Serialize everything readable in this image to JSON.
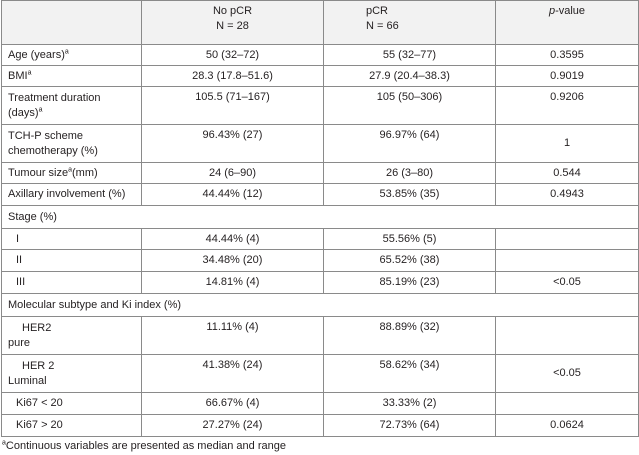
{
  "header": {
    "col0": "",
    "col1_line1": "No pCR",
    "col1_line2": "N = 28",
    "col2_line1": "pCR",
    "col2_line2": "N = 66",
    "col3_italic": "p",
    "col3_rest": "-value"
  },
  "rows": [
    {
      "label": "Age (years)",
      "sup": "a",
      "c1": "50 (32–72)",
      "c2": "55 (32–77)",
      "c3": "0.3595"
    },
    {
      "label": "BMI",
      "sup": "a",
      "c1": "28.3 (17.8–51.6)",
      "c2": "27.9 (20.4–38.3)",
      "c3": "0.9019"
    },
    {
      "label1": "Treatment duration",
      "label2": "(days)",
      "sup": "a",
      "c1": "105.5 (71–167)",
      "c2": "105 (50–306)",
      "c3": "0.9206"
    },
    {
      "label1": "TCH-P scheme",
      "label2": "chemotherapy (%)",
      "c1": "96.43% (27)",
      "c2": "96.97% (64)",
      "c3": "1"
    },
    {
      "label": "Tumour size",
      "sup": "a",
      "label_after": "(mm)",
      "c1": "24 (6–90)",
      "c2": "26 (3–80)",
      "c3": "0.544"
    },
    {
      "label": "Axillary involvement (%)",
      "c1": "44.44% (12)",
      "c2": "53.85% (35)",
      "c3": "0.4943"
    }
  ],
  "stage": {
    "title": "Stage (%)",
    "rows": [
      {
        "label": "I",
        "c1": "44.44% (4)",
        "c2": "55.56% (5)",
        "c3": ""
      },
      {
        "label": "II",
        "c1": "34.48% (20)",
        "c2": "65.52% (38)",
        "c3": ""
      },
      {
        "label": "III",
        "c1": "14.81% (4)",
        "c2": "85.19% (23)",
        "c3": "<0.05"
      }
    ]
  },
  "molecular": {
    "title": "Molecular subtype and Ki index (%)",
    "rows": [
      {
        "label1": "HER2",
        "label2": "pure",
        "c1": "11.11% (4)",
        "c2": "88.89% (32)",
        "c3": ""
      },
      {
        "label1": "HER 2",
        "label2": "Luminal",
        "c1": "41.38% (24)",
        "c2": "58.62% (34)",
        "c3": "<0.05"
      },
      {
        "label": "Ki67 < 20",
        "c1": "66.67% (4)",
        "c2": "33.33% (2)",
        "c3": ""
      },
      {
        "label": "Ki67 > 20",
        "c1": "27.27% (24)",
        "c2": "72.73% (64)",
        "c3": "0.0624"
      }
    ]
  },
  "footnote": {
    "sup": "a",
    "text": "Continuous variables are presented as median and range"
  }
}
